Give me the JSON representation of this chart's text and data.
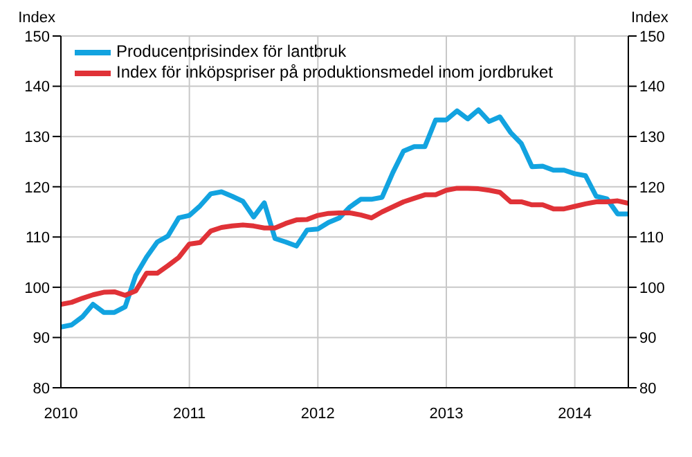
{
  "chart_data": {
    "type": "line",
    "ylabel": "Index",
    "y2label": "Index",
    "x": [
      "2010-01",
      "2010-02",
      "2010-03",
      "2010-04",
      "2010-05",
      "2010-06",
      "2010-07",
      "2010-08",
      "2010-09",
      "2010-10",
      "2010-11",
      "2010-12",
      "2011-01",
      "2011-02",
      "2011-03",
      "2011-04",
      "2011-05",
      "2011-06",
      "2011-07",
      "2011-08",
      "2011-09",
      "2011-10",
      "2011-11",
      "2011-12",
      "2012-01",
      "2012-02",
      "2012-03",
      "2012-04",
      "2012-05",
      "2012-06",
      "2012-07",
      "2012-08",
      "2012-09",
      "2012-10",
      "2012-11",
      "2012-12",
      "2013-01",
      "2013-02",
      "2013-03",
      "2013-04",
      "2013-05",
      "2013-06",
      "2013-07",
      "2013-08",
      "2013-09",
      "2013-10",
      "2013-11",
      "2013-12",
      "2014-01",
      "2014-02",
      "2014-03",
      "2014-04",
      "2014-05",
      "2014-06"
    ],
    "series": [
      {
        "name": "Producentprisindex för lantbruk",
        "color": "#12a3e0",
        "values": [
          92.1,
          92.5,
          94.1,
          96.6,
          95,
          95,
          96.1,
          102.4,
          106,
          109,
          110.2,
          113.8,
          114.3,
          116.2,
          118.6,
          119,
          118.1,
          117.1,
          114,
          116.8,
          109.7,
          109,
          108.2,
          111.4,
          111.6,
          112.9,
          113.8,
          116,
          117.5,
          117.5,
          117.9,
          122.8,
          127.1,
          128,
          128,
          133.3,
          133.3,
          135.1,
          133.5,
          135.3,
          133,
          133.9,
          130.8,
          128.6,
          124,
          124.1,
          123.3,
          123.3,
          122.6,
          122.2,
          118.1,
          117.6,
          114.6,
          114.6
        ]
      },
      {
        "name": "Index för inköpspriser på produktionsmedel inom jordbruket",
        "color": "#e03237",
        "values": [
          96.6,
          97,
          97.8,
          98.5,
          99,
          99.1,
          98.4,
          99.3,
          102.8,
          102.8,
          104.3,
          105.9,
          108.6,
          108.9,
          111.2,
          111.9,
          112.2,
          112.4,
          112.2,
          111.8,
          111.8,
          112.7,
          113.4,
          113.5,
          114.3,
          114.7,
          114.8,
          114.8,
          114.4,
          113.8,
          115,
          116,
          117,
          117.7,
          118.4,
          118.4,
          119.3,
          119.7,
          119.7,
          119.6,
          119.3,
          118.9,
          117,
          117,
          116.4,
          116.4,
          115.6,
          115.6,
          116.1,
          116.6,
          117,
          117,
          117.2,
          116.7
        ]
      }
    ],
    "xlim": [
      "2010-01",
      "2014-06"
    ],
    "xticks": [
      "2010",
      "2011",
      "2012",
      "2013",
      "2014"
    ],
    "ylim": [
      80,
      150
    ],
    "yticks": [
      80,
      90,
      100,
      110,
      120,
      130,
      140,
      150
    ],
    "y2lim": [
      80,
      150
    ],
    "y2ticks": [
      80,
      90,
      100,
      110,
      120,
      130,
      140,
      150
    ],
    "grid": true,
    "legend": "top left",
    "line_style": "solid",
    "marker": "none"
  }
}
